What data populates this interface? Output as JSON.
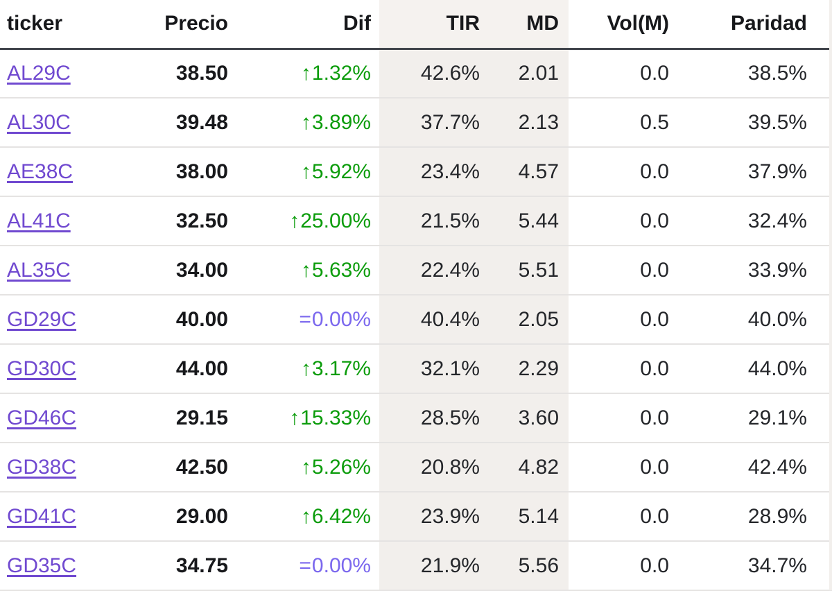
{
  "colors": {
    "link": "#7049d0",
    "up": "#0b9c0b",
    "flat": "#7b68ee",
    "shade": "#f2efec",
    "shade-header": "#f5f2ef",
    "text": "#24262a",
    "header-border": "#41454c",
    "row-border": "#e5e3e2"
  },
  "icons": {
    "up_arrow": "↑",
    "equals": "="
  },
  "columns": [
    {
      "key": "ticker",
      "label": "ticker",
      "align": "left",
      "shaded": false
    },
    {
      "key": "precio",
      "label": "Precio",
      "align": "right",
      "shaded": false
    },
    {
      "key": "dif",
      "label": "Dif",
      "align": "right",
      "shaded": false
    },
    {
      "key": "tir",
      "label": "TIR",
      "align": "right",
      "shaded": true
    },
    {
      "key": "md",
      "label": "MD",
      "align": "right",
      "shaded": true
    },
    {
      "key": "vol",
      "label": "Vol(M)",
      "align": "right",
      "shaded": false
    },
    {
      "key": "paridad",
      "label": "Paridad",
      "align": "right",
      "shaded": false
    }
  ],
  "rows": [
    {
      "ticker": "AL29C",
      "precio": "38.50",
      "dif": "1.32%",
      "dif_dir": "up",
      "tir": "42.6%",
      "md": "2.01",
      "vol": "0.0",
      "paridad": "38.5%"
    },
    {
      "ticker": "AL30C",
      "precio": "39.48",
      "dif": "3.89%",
      "dif_dir": "up",
      "tir": "37.7%",
      "md": "2.13",
      "vol": "0.5",
      "paridad": "39.5%"
    },
    {
      "ticker": "AE38C",
      "precio": "38.00",
      "dif": "5.92%",
      "dif_dir": "up",
      "tir": "23.4%",
      "md": "4.57",
      "vol": "0.0",
      "paridad": "37.9%"
    },
    {
      "ticker": "AL41C",
      "precio": "32.50",
      "dif": "25.00%",
      "dif_dir": "up",
      "tir": "21.5%",
      "md": "5.44",
      "vol": "0.0",
      "paridad": "32.4%"
    },
    {
      "ticker": "AL35C",
      "precio": "34.00",
      "dif": "5.63%",
      "dif_dir": "up",
      "tir": "22.4%",
      "md": "5.51",
      "vol": "0.0",
      "paridad": "33.9%"
    },
    {
      "ticker": "GD29C",
      "precio": "40.00",
      "dif": "0.00%",
      "dif_dir": "flat",
      "tir": "40.4%",
      "md": "2.05",
      "vol": "0.0",
      "paridad": "40.0%"
    },
    {
      "ticker": "GD30C",
      "precio": "44.00",
      "dif": "3.17%",
      "dif_dir": "up",
      "tir": "32.1%",
      "md": "2.29",
      "vol": "0.0",
      "paridad": "44.0%"
    },
    {
      "ticker": "GD46C",
      "precio": "29.15",
      "dif": "15.33%",
      "dif_dir": "up",
      "tir": "28.5%",
      "md": "3.60",
      "vol": "0.0",
      "paridad": "29.1%"
    },
    {
      "ticker": "GD38C",
      "precio": "42.50",
      "dif": "5.26%",
      "dif_dir": "up",
      "tir": "20.8%",
      "md": "4.82",
      "vol": "0.0",
      "paridad": "42.4%"
    },
    {
      "ticker": "GD41C",
      "precio": "29.00",
      "dif": "6.42%",
      "dif_dir": "up",
      "tir": "23.9%",
      "md": "5.14",
      "vol": "0.0",
      "paridad": "28.9%"
    },
    {
      "ticker": "GD35C",
      "precio": "34.75",
      "dif": "0.00%",
      "dif_dir": "flat",
      "tir": "21.9%",
      "md": "5.56",
      "vol": "0.0",
      "paridad": "34.7%"
    }
  ]
}
